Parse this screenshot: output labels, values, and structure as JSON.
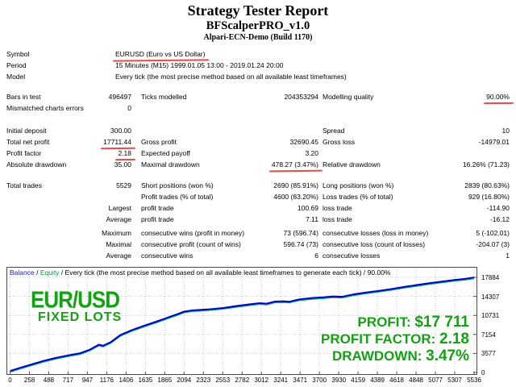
{
  "colors": {
    "green": "#16a016",
    "blue": "#2121cc",
    "equity": "#00a040",
    "balance_line": "#0000cc",
    "equity_line": "#00a050",
    "grid": "#c6c6c6",
    "red": "#e84b4b",
    "tick": "#555555"
  },
  "report": {
    "title": "Strategy Tester Report",
    "ea_name": "BFScalperPRO_v1.0",
    "server": "Alpari-ECN-Demo (Build 1170)"
  },
  "table": {
    "rows": [
      {
        "a": "Symbol",
        "span": "EURUSD (Euro vs US Dollar)",
        "u_span": true
      },
      {
        "a": "Period",
        "span": "15 Minutes (M15) 1999.01.05 13:00 - 2019.01.24 20:00"
      },
      {
        "a": "Model",
        "span": "Every tick (the most precise method based on all available least timeframes)"
      },
      {
        "gap": 11
      },
      {
        "a": "Bars in test",
        "b": "496497",
        "c": "Ticks modelled",
        "d": "204353294",
        "e": "Modelling quality",
        "f": "90.00%",
        "u_f": true
      },
      {
        "a": "Mismatched charts errors",
        "b": "0"
      },
      {
        "gap": 14
      },
      {
        "a": "Initial deposit",
        "b": "300.00",
        "e": "Spread",
        "f": "10"
      },
      {
        "a": "Total net profit",
        "b": "17711.44",
        "u_b": true,
        "c": "Gross profit",
        "d": "32690.45",
        "e": "Gross loss",
        "f": "-14979.01"
      },
      {
        "a": "Profit factor",
        "b": "2.18",
        "u_b": true,
        "c": "Expected payoff",
        "d": "3.20"
      },
      {
        "a": "Absolute drawdown",
        "b": "35.00",
        "c": "Maximal drawdown",
        "d": "478.27 (3.47%)",
        "u_d": true,
        "e": "Relative drawdown",
        "f": "16.26% (71.23)"
      },
      {
        "gap": 12
      },
      {
        "a": "Total trades",
        "b": "5529",
        "c": "Short positions (won %)",
        "d": "2690 (85.91%)",
        "e": "Long positions (won %)",
        "f": "2839 (80.63%)"
      },
      {
        "c": "Profit trades (% of total)",
        "d": "4600 (83.20%)",
        "e": "Loss trades (% of total)",
        "f": "929 (16.80%)"
      },
      {
        "b": "Largest",
        "c": "profit trade",
        "d": "100.69",
        "e": "loss trade",
        "f": "-114.90"
      },
      {
        "b": "Average",
        "c": "profit trade",
        "d": "7.11",
        "e": "loss trade",
        "f": "-16.12"
      },
      {
        "gap": 3
      },
      {
        "b": "Maximum",
        "c": "consecutive wins (profit in money)",
        "d": "73 (596.74)",
        "e": "consecutive losses (loss in money)",
        "f": "5 (-102.01)"
      },
      {
        "b": "Maximal",
        "c": "consecutive profit (count of wins)",
        "d": "596.74 (73)",
        "e": "consecutive loss (count of losses)",
        "f": "-204.07 (3)"
      },
      {
        "b": "Average",
        "c": "consecutive wins",
        "d": "6",
        "e": "consecutive losses",
        "f": "1"
      }
    ]
  },
  "chart_data": {
    "type": "line",
    "legend": {
      "balance": "Balance",
      "equity": "Equity",
      "sep": " / ",
      "rest": "Every tick (the most precise method based on all available least timeframes to generate each tick) / 90.00%"
    },
    "xlim": [
      0,
      5536
    ],
    "ylim": [
      0,
      17884
    ],
    "x_ticks": [
      0,
      258,
      488,
      717,
      947,
      1176,
      1406,
      1635,
      1865,
      2094,
      2323,
      2553,
      2782,
      3012,
      3241,
      3471,
      3700,
      3930,
      4159,
      4389,
      4618,
      4848,
      5077,
      5307,
      5536
    ],
    "y_ticks": [
      0,
      3577,
      7154,
      10731,
      14307,
      17884
    ],
    "grid": true,
    "series": [
      {
        "name": "Balance",
        "points": [
          [
            0,
            300
          ],
          [
            120,
            900
          ],
          [
            260,
            1550
          ],
          [
            400,
            2200
          ],
          [
            540,
            2750
          ],
          [
            700,
            3250
          ],
          [
            840,
            3650
          ],
          [
            950,
            4300
          ],
          [
            1060,
            5250
          ],
          [
            1110,
            5050
          ],
          [
            1200,
            5700
          ],
          [
            1320,
            7100
          ],
          [
            1450,
            7950
          ],
          [
            1600,
            8800
          ],
          [
            1750,
            9600
          ],
          [
            1900,
            10450
          ],
          [
            2000,
            11000
          ],
          [
            2080,
            11470
          ],
          [
            2180,
            11700
          ],
          [
            2300,
            11800
          ],
          [
            2420,
            11950
          ],
          [
            2550,
            12150
          ],
          [
            2700,
            12500
          ],
          [
            2850,
            12800
          ],
          [
            2980,
            13050
          ],
          [
            3060,
            12950
          ],
          [
            3160,
            13350
          ],
          [
            3260,
            13400
          ],
          [
            3330,
            13300
          ],
          [
            3450,
            13750
          ],
          [
            3600,
            14000
          ],
          [
            3750,
            14150
          ],
          [
            3850,
            14300
          ],
          [
            3960,
            14250
          ],
          [
            4100,
            14700
          ],
          [
            4250,
            15050
          ],
          [
            4400,
            15350
          ],
          [
            4550,
            15700
          ],
          [
            4700,
            16100
          ],
          [
            4850,
            16450
          ],
          [
            5000,
            16800
          ],
          [
            5150,
            17100
          ],
          [
            5300,
            17400
          ],
          [
            5440,
            17620
          ],
          [
            5536,
            17884
          ]
        ]
      },
      {
        "name": "Equity",
        "follows": "Balance"
      }
    ],
    "overlay": {
      "symbol": "EUR/USD",
      "mode": "FIXED LOTS",
      "stats": [
        {
          "label": "PROFIT:",
          "value": "$17 711"
        },
        {
          "label": "PROFIT FACTOR:",
          "value": "2.18"
        },
        {
          "label": "DRAWDOWN:",
          "value": "3.47%"
        }
      ]
    }
  }
}
